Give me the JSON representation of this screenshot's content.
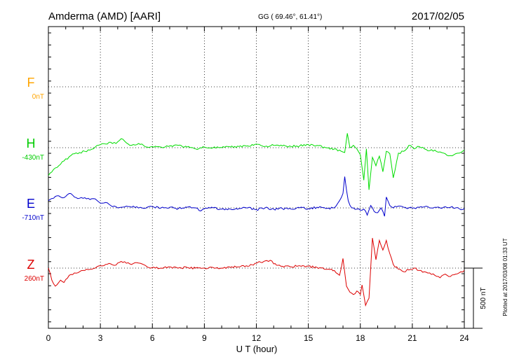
{
  "header": {
    "station": "Amderma (AMD)  [AARI]",
    "coords": "GG ( 69.46°,  61.41°)",
    "date": "2017/02/05"
  },
  "side_note": "Plotted at 2017/03/08 01:33 UT",
  "scale_label": "500 nT",
  "colors": {
    "F": "#ffa500",
    "H": "#00dd00",
    "E": "#0000cc",
    "Z": "#dd0000",
    "grid": "#000000"
  },
  "chart_data": {
    "type": "line",
    "xlabel": "U T (hour)",
    "xlim": [
      0,
      24
    ],
    "xticks": [
      "0",
      "3",
      "6",
      "9",
      "12",
      "15",
      "18",
      "21",
      "24"
    ],
    "ylabel": "",
    "scale_bar_nT": 500,
    "series": [
      {
        "name": "F",
        "baseline_label": "0nT",
        "color": "#ffa500",
        "x": [],
        "values": []
      },
      {
        "name": "H",
        "baseline_label": "-430nT",
        "color": "#00dd00",
        "x": [
          0,
          0.3,
          0.6,
          0.9,
          1.2,
          1.5,
          1.8,
          2.1,
          2.4,
          2.7,
          3.0,
          3.3,
          3.6,
          3.9,
          4.2,
          4.5,
          4.8,
          5.1,
          5.4,
          5.7,
          6.0,
          6.5,
          7.0,
          7.5,
          8.0,
          8.5,
          9.0,
          9.5,
          10.0,
          10.5,
          11.0,
          11.5,
          12.0,
          12.5,
          13.0,
          13.5,
          14.0,
          14.5,
          15.0,
          15.5,
          16.0,
          16.5,
          16.9,
          17.1,
          17.25,
          17.4,
          17.6,
          17.8,
          18.0,
          18.2,
          18.35,
          18.5,
          18.7,
          18.9,
          19.1,
          19.3,
          19.5,
          19.7,
          19.9,
          20.2,
          20.5,
          20.8,
          21.1,
          21.4,
          21.7,
          22.0,
          22.3,
          22.6,
          22.9,
          23.2,
          23.5,
          23.8,
          24.0
        ],
        "values": [
          -230,
          -180,
          -150,
          -110,
          -75,
          -50,
          -40,
          -30,
          -20,
          5,
          25,
          30,
          45,
          35,
          75,
          40,
          20,
          25,
          30,
          5,
          10,
          5,
          15,
          20,
          5,
          -10,
          5,
          0,
          0,
          5,
          10,
          15,
          30,
          10,
          20,
          15,
          10,
          15,
          25,
          20,
          0,
          -10,
          -30,
          -40,
          120,
          0,
          20,
          -10,
          -60,
          -270,
          -10,
          -350,
          -80,
          -150,
          -70,
          -200,
          -30,
          -50,
          -250,
          -45,
          -30,
          20,
          -10,
          10,
          -10,
          -25,
          -20,
          -35,
          -50,
          -65,
          -50,
          -40,
          -20
        ]
      },
      {
        "name": "E",
        "baseline_label": "-710nT",
        "color": "#0000cc",
        "x": [
          0,
          0.3,
          0.6,
          0.9,
          1.2,
          1.5,
          1.8,
          2.1,
          2.4,
          2.7,
          3.0,
          3.3,
          3.6,
          3.9,
          4.2,
          4.5,
          4.8,
          5.1,
          5.4,
          5.7,
          6.0,
          6.5,
          7.0,
          7.5,
          8.0,
          8.5,
          8.8,
          9.0,
          9.5,
          10.0,
          10.5,
          11.0,
          11.5,
          12.0,
          12.5,
          13.0,
          13.5,
          14.0,
          14.5,
          15.0,
          15.5,
          16.0,
          16.5,
          16.8,
          17.0,
          17.1,
          17.2,
          17.3,
          17.5,
          17.8,
          18.0,
          18.2,
          18.4,
          18.6,
          18.8,
          19.0,
          19.2,
          19.4,
          19.5,
          19.7,
          19.9,
          20.2,
          20.5,
          20.8,
          21.1,
          21.4,
          21.7,
          22.0,
          22.3,
          22.6,
          22.9,
          23.2,
          23.5,
          23.8,
          24.0
        ],
        "values": [
          60,
          80,
          100,
          85,
          120,
          90,
          80,
          85,
          70,
          75,
          40,
          45,
          20,
          10,
          5,
          15,
          5,
          10,
          0,
          5,
          10,
          0,
          5,
          -5,
          5,
          0,
          -25,
          -5,
          0,
          -10,
          -10,
          -5,
          0,
          -15,
          0,
          -10,
          -5,
          -10,
          0,
          -5,
          5,
          -5,
          0,
          60,
          120,
          260,
          150,
          60,
          0,
          -10,
          -20,
          -10,
          -60,
          20,
          -30,
          -40,
          0,
          -70,
          90,
          20,
          0,
          15,
          5,
          0,
          0,
          5,
          10,
          0,
          5,
          0,
          10,
          5,
          0,
          -15,
          -5
        ]
      },
      {
        "name": "Z",
        "baseline_label": "260nT",
        "color": "#dd0000",
        "x": [
          0,
          0.2,
          0.4,
          0.7,
          0.9,
          1.2,
          1.5,
          1.8,
          2.1,
          2.4,
          2.7,
          3.0,
          3.3,
          3.6,
          3.9,
          4.2,
          4.5,
          4.8,
          5.1,
          5.4,
          5.7,
          6.0,
          6.5,
          7.0,
          7.5,
          8.0,
          8.5,
          9.0,
          9.5,
          10.0,
          10.5,
          11.0,
          11.5,
          12.0,
          12.5,
          12.8,
          13.0,
          13.5,
          14.0,
          14.5,
          15.0,
          15.5,
          16.0,
          16.5,
          16.8,
          17.0,
          17.2,
          17.4,
          17.6,
          17.8,
          18.0,
          18.1,
          18.3,
          18.5,
          18.7,
          18.9,
          19.1,
          19.3,
          19.5,
          19.7,
          19.9,
          20.2,
          20.5,
          20.8,
          21.1,
          21.4,
          21.7,
          22.0,
          22.3,
          22.6,
          22.9,
          23.2,
          23.5,
          23.8,
          24.0
        ],
        "values": [
          0,
          -100,
          -150,
          -100,
          -120,
          -60,
          -40,
          -30,
          -20,
          -10,
          0,
          20,
          30,
          35,
          25,
          55,
          40,
          30,
          45,
          35,
          10,
          5,
          0,
          10,
          0,
          5,
          0,
          0,
          5,
          0,
          5,
          10,
          15,
          40,
          60,
          65,
          35,
          15,
          10,
          20,
          15,
          5,
          -10,
          -20,
          -60,
          80,
          -150,
          -200,
          -220,
          -190,
          -220,
          -140,
          -310,
          -250,
          250,
          70,
          230,
          150,
          230,
          120,
          30,
          -10,
          -30,
          -15,
          0,
          -20,
          -30,
          -40,
          -60,
          -80,
          -50,
          -70,
          -50,
          -30,
          -20
        ]
      }
    ]
  }
}
